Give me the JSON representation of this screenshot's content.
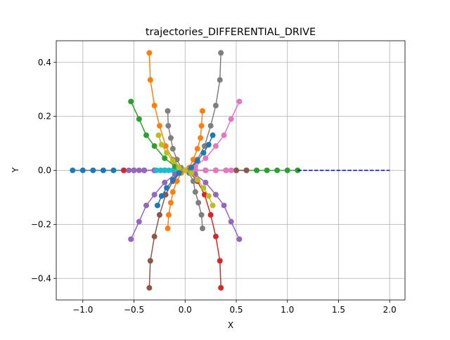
{
  "chart_data": {
    "type": "line",
    "title": "trajectories_DIFFERENTIAL_DRIVE",
    "x_label": "X",
    "y_label": "Y",
    "xlim": [
      -1.26,
      2.15
    ],
    "ylim": [
      -0.48,
      0.48
    ],
    "xticks": [
      {
        "value": -1.0,
        "label": "−1.0"
      },
      {
        "value": -0.5,
        "label": "−0.5"
      },
      {
        "value": 0,
        "label": "0.0"
      },
      0.5,
      {
        "value": 1.0,
        "label": "1.0"
      },
      1.5,
      {
        "value": 2.0,
        "label": "2.0"
      }
    ],
    "yticks": [
      {
        "value": -0.4,
        "label": "−0.4"
      },
      {
        "value": -0.2,
        "label": "−0.2"
      },
      {
        "value": 0,
        "label": "0.0"
      },
      0.2,
      0.4
    ],
    "grid": true,
    "series": [
      {
        "color": "#1f77b4",
        "style": "o-",
        "x": [
          0,
          -0.1,
          -0.2,
          -0.3,
          -0.4,
          -0.5,
          -0.6,
          -0.7,
          -0.8,
          -0.9,
          -1.0,
          -1.1
        ],
        "y": [
          0,
          0,
          0,
          0,
          0,
          0,
          0,
          0,
          0,
          0,
          0,
          0
        ]
      },
      {
        "color": "#2ca02c",
        "style": "o-",
        "x": [
          0,
          0.1,
          0.2,
          0.3,
          0.4,
          0.5,
          0.6,
          0.7,
          0.8,
          0.9,
          1.0,
          1.1
        ],
        "y": [
          0,
          0,
          0,
          0,
          0,
          0,
          0,
          0,
          0,
          0,
          0,
          0
        ]
      },
      {
        "color": "#d62728",
        "style": "o-",
        "x": [
          0,
          -0.1,
          -0.2,
          -0.3,
          -0.4,
          -0.5,
          -0.6
        ],
        "y": [
          0,
          0,
          0,
          0,
          0,
          0,
          0
        ]
      },
      {
        "color": "#8c564b",
        "style": "o-",
        "x": [
          0,
          0.1,
          0.2,
          0.3,
          0.4,
          0.5,
          0.6
        ],
        "y": [
          0,
          0,
          0,
          0,
          0,
          0,
          0
        ]
      },
      {
        "color": "#9467bd",
        "style": "o-",
        "x": [
          0,
          -0.1,
          -0.2,
          -0.3,
          -0.4,
          -0.45,
          -0.5,
          -0.55
        ],
        "y": [
          0,
          0,
          0,
          0,
          0,
          0,
          0,
          0
        ]
      },
      {
        "color": "#e377c2",
        "style": "o-",
        "x": [
          0,
          0.1,
          0.2,
          0.3,
          0.4,
          0.45
        ],
        "y": [
          0,
          0,
          0,
          0,
          0,
          0
        ]
      },
      {
        "color": "#17becf",
        "style": "o-",
        "x": [
          0,
          -0.04,
          -0.08,
          -0.12,
          -0.16,
          -0.2,
          -0.24,
          -0.28
        ],
        "y": [
          0,
          0,
          0,
          0,
          0,
          0,
          0,
          0
        ]
      },
      {
        "color": "#0000cc",
        "style": "--",
        "x": [
          1.1,
          2.0
        ],
        "y": [
          0,
          0
        ]
      },
      {
        "color": "#ff7f0e",
        "style": "o-",
        "x": [
          0,
          -0.05,
          -0.12,
          -0.19,
          -0.25,
          -0.3,
          -0.34,
          -0.35
        ],
        "y": [
          0,
          0.01,
          0.04,
          0.09,
          0.165,
          0.24,
          0.335,
          0.435
        ]
      },
      {
        "color": "#7f7f7f",
        "style": "o-",
        "x": [
          0,
          0.05,
          0.12,
          0.19,
          0.25,
          0.3,
          0.34,
          0.35
        ],
        "y": [
          0,
          0.01,
          0.04,
          0.09,
          0.165,
          0.24,
          0.335,
          0.435
        ]
      },
      {
        "color": "#d62728",
        "style": "o-",
        "x": [
          0,
          0.05,
          0.12,
          0.19,
          0.25,
          0.3,
          0.34,
          0.35
        ],
        "y": [
          0,
          -0.01,
          -0.04,
          -0.09,
          -0.165,
          -0.245,
          -0.335,
          -0.435
        ]
      },
      {
        "color": "#8c564b",
        "style": "o-",
        "x": [
          0,
          -0.05,
          -0.12,
          -0.19,
          -0.25,
          -0.3,
          -0.34,
          -0.35
        ],
        "y": [
          0,
          -0.01,
          -0.04,
          -0.09,
          -0.165,
          -0.245,
          -0.335,
          -0.435
        ]
      },
      {
        "color": "#2ca02c",
        "style": "o-",
        "x": [
          0,
          -0.1,
          -0.2,
          -0.3,
          -0.38,
          -0.45,
          -0.53
        ],
        "y": [
          0,
          0.015,
          0.045,
          0.09,
          0.13,
          0.19,
          0.255
        ]
      },
      {
        "color": "#e377c2",
        "style": "o-",
        "x": [
          0,
          0.1,
          0.2,
          0.3,
          0.38,
          0.45,
          0.53
        ],
        "y": [
          0,
          0.015,
          0.045,
          0.09,
          0.13,
          0.19,
          0.255
        ]
      },
      {
        "color": "#9467bd",
        "style": "o-",
        "x": [
          0,
          -0.1,
          -0.2,
          -0.3,
          -0.38,
          -0.45,
          -0.53
        ],
        "y": [
          0,
          -0.015,
          -0.045,
          -0.09,
          -0.13,
          -0.19,
          -0.255
        ]
      },
      {
        "color": "#9467bd",
        "style": "o-",
        "x": [
          0,
          0.1,
          0.2,
          0.3,
          0.38,
          0.45,
          0.53
        ],
        "y": [
          0,
          -0.015,
          -0.045,
          -0.09,
          -0.13,
          -0.19,
          -0.255
        ]
      },
      {
        "color": "#7f7f7f",
        "style": "o-",
        "x": [
          0,
          -0.04,
          -0.08,
          -0.12,
          -0.14,
          -0.165,
          -0.17
        ],
        "y": [
          0,
          0.01,
          0.04,
          0.08,
          0.12,
          0.165,
          0.22
        ]
      },
      {
        "color": "#ff7f0e",
        "style": "o-",
        "x": [
          0,
          0.04,
          0.08,
          0.12,
          0.15,
          0.16,
          0.17
        ],
        "y": [
          0,
          0.01,
          0.04,
          0.08,
          0.12,
          0.165,
          0.22
        ]
      },
      {
        "color": "#7f7f7f",
        "style": "o-",
        "x": [
          0,
          0.04,
          0.08,
          0.1,
          0.13,
          0.16,
          0.17
        ],
        "y": [
          0,
          -0.01,
          -0.04,
          -0.08,
          -0.12,
          -0.165,
          -0.215
        ]
      },
      {
        "color": "#ff7f0e",
        "style": "o-",
        "x": [
          0,
          -0.04,
          -0.08,
          -0.12,
          -0.14,
          -0.16,
          -0.17
        ],
        "y": [
          0,
          -0.01,
          -0.04,
          -0.08,
          -0.12,
          -0.165,
          -0.215
        ]
      },
      {
        "color": "#1f77b4",
        "style": "o-",
        "x": [
          0,
          0.06,
          0.12,
          0.18,
          0.23,
          0.27
        ],
        "y": [
          0,
          0.01,
          0.035,
          0.065,
          0.095,
          0.13
        ]
      },
      {
        "color": "#1f77b4",
        "style": "o-",
        "x": [
          0,
          -0.06,
          -0.12,
          -0.18,
          -0.23,
          -0.27
        ],
        "y": [
          0,
          -0.01,
          -0.035,
          -0.065,
          -0.095,
          -0.13
        ]
      },
      {
        "color": "#bcbd22",
        "style": "o-",
        "x": [
          0,
          -0.06,
          -0.12,
          -0.18,
          -0.23,
          -0.26
        ],
        "y": [
          0,
          0.01,
          0.035,
          0.065,
          0.095,
          0.13
        ]
      },
      {
        "color": "#bcbd22",
        "style": "o-",
        "x": [
          0,
          0.06,
          0.12,
          0.18,
          0.23,
          0.27
        ],
        "y": [
          0,
          -0.01,
          -0.035,
          -0.065,
          -0.095,
          -0.13
        ]
      }
    ]
  }
}
